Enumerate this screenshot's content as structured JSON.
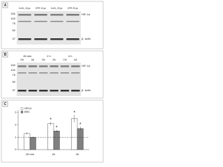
{
  "panel_a": {
    "label": "A",
    "lanes": [
      "CoCl₂ 10 μL",
      "CFR 10 μL",
      "CoCl₂ 20 μL",
      "CFR 20 μL"
    ],
    "markers": [
      "150",
      "100",
      "75",
      "50",
      "37"
    ],
    "bands": [
      "HIF-1α",
      "β- actin"
    ]
  },
  "panel_b": {
    "label": "B",
    "groups": [
      "45 min",
      "2 h",
      "4 h"
    ],
    "lanes": [
      "Ctrl",
      "AA",
      "Ctrl",
      "AA",
      "Ctrl",
      "AA"
    ],
    "markers": [
      "150",
      "100",
      "75",
      "50",
      "37"
    ],
    "bands": [
      "HIF-1α",
      "β- actin"
    ]
  },
  "chart_data": {
    "type": "bar",
    "label": "C",
    "categories": [
      "45 min",
      "2h",
      "4h"
    ],
    "series": [
      {
        "name": "OE14",
        "color": "#ffffff",
        "values": [
          1.3,
          2.1,
          2.5
        ],
        "errors": [
          0.1,
          0.15,
          0.3
        ],
        "significance": [
          null,
          "*",
          "*"
        ]
      },
      {
        "name": "BR1",
        "color": "#808080",
        "values": [
          1.0,
          1.5,
          1.7
        ],
        "errors": [
          0.05,
          0.1,
          0.15
        ],
        "significance": [
          null,
          "*",
          "*"
        ]
      }
    ],
    "ylim": [
      0,
      3.2
    ],
    "yticks": [
      0,
      1,
      2,
      3
    ],
    "reference_line": 1
  }
}
